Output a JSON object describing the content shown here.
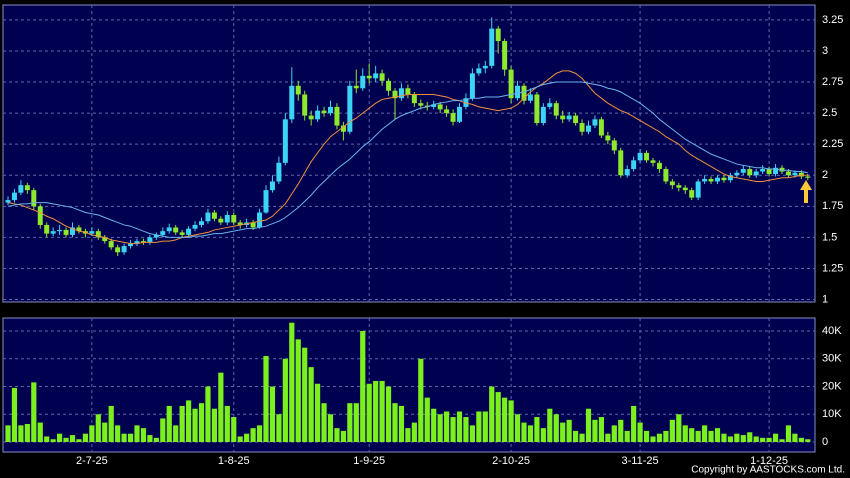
{
  "chart_data": {
    "type": "candlestick",
    "categories": [
      null,
      null,
      null,
      null,
      null,
      null,
      null,
      null,
      null,
      null,
      null,
      null,
      null,
      "2-7-25",
      null,
      null,
      null,
      null,
      null,
      null,
      null,
      null,
      null,
      null,
      null,
      null,
      null,
      null,
      null,
      null,
      null,
      null,
      null,
      null,
      null,
      "1-8-25",
      null,
      null,
      null,
      null,
      null,
      null,
      null,
      null,
      null,
      null,
      null,
      null,
      null,
      null,
      null,
      null,
      null,
      null,
      null,
      null,
      "1-9-25",
      null,
      null,
      null,
      null,
      null,
      null,
      null,
      null,
      null,
      null,
      null,
      null,
      null,
      null,
      null,
      null,
      null,
      null,
      null,
      null,
      null,
      "2-10-25",
      null,
      null,
      null,
      null,
      null,
      null,
      null,
      null,
      null,
      null,
      null,
      null,
      null,
      null,
      null,
      null,
      null,
      null,
      null,
      "3-11-25",
      null,
      null,
      null,
      null,
      null,
      null,
      null,
      null,
      null,
      null,
      null,
      null,
      null,
      null,
      null,
      null,
      null,
      null,
      null,
      "1-12-25",
      null,
      null,
      null,
      null,
      null,
      null
    ],
    "open": [
      1.78,
      1.8,
      1.86,
      1.92,
      1.88,
      1.75,
      1.6,
      1.53,
      1.55,
      1.56,
      1.52,
      1.58,
      1.55,
      1.53,
      1.55,
      1.5,
      1.47,
      1.42,
      1.38,
      1.43,
      1.45,
      1.47,
      1.46,
      1.5,
      1.52,
      1.55,
      1.58,
      1.54,
      1.52,
      1.57,
      1.6,
      1.63,
      1.7,
      1.65,
      1.62,
      1.68,
      1.62,
      1.6,
      1.62,
      1.58,
      1.7,
      1.88,
      1.95,
      2.1,
      2.45,
      2.72,
      2.65,
      2.48,
      2.45,
      2.52,
      2.5,
      2.55,
      2.4,
      2.35,
      2.72,
      2.7,
      2.8,
      2.78,
      2.82,
      2.76,
      2.68,
      2.62,
      2.7,
      2.65,
      2.58,
      2.56,
      2.55,
      2.57,
      2.53,
      2.5,
      2.43,
      2.55,
      2.62,
      2.82,
      2.86,
      2.88,
      3.18,
      3.08,
      2.85,
      2.62,
      2.72,
      2.6,
      2.65,
      2.42,
      2.55,
      2.58,
      2.48,
      2.45,
      2.48,
      2.42,
      2.35,
      2.4,
      2.45,
      2.32,
      2.28,
      2.2,
      2.0,
      2.05,
      2.12,
      2.18,
      2.12,
      2.1,
      2.05,
      1.95,
      1.92,
      1.9,
      1.88,
      1.82,
      1.95,
      1.97,
      1.95,
      1.98,
      1.96,
      2.0,
      2.02,
      2.05,
      2.0,
      2.03,
      2.05,
      2.01,
      2.06,
      2.03,
      2.0,
      2.02,
      1.99
    ],
    "high": [
      1.83,
      1.89,
      1.96,
      1.94,
      1.9,
      1.77,
      1.62,
      1.58,
      1.6,
      1.58,
      1.62,
      1.6,
      1.57,
      1.58,
      1.57,
      1.52,
      1.49,
      1.44,
      1.45,
      1.48,
      1.49,
      1.49,
      1.52,
      1.54,
      1.58,
      1.61,
      1.6,
      1.56,
      1.59,
      1.63,
      1.66,
      1.73,
      1.72,
      1.67,
      1.71,
      1.7,
      1.64,
      1.65,
      1.64,
      1.73,
      1.92,
      2.0,
      2.15,
      2.5,
      2.87,
      2.76,
      2.68,
      2.52,
      2.56,
      2.55,
      2.6,
      2.58,
      2.43,
      2.76,
      2.85,
      2.86,
      2.9,
      2.88,
      2.85,
      2.78,
      2.7,
      2.74,
      2.73,
      2.67,
      2.61,
      2.59,
      2.6,
      2.59,
      2.56,
      2.53,
      2.58,
      2.66,
      2.86,
      2.9,
      2.92,
      3.27,
      3.2,
      3.1,
      2.88,
      2.76,
      2.74,
      2.7,
      2.67,
      2.58,
      2.62,
      2.6,
      2.52,
      2.51,
      2.5,
      2.45,
      2.44,
      2.48,
      2.47,
      2.35,
      2.3,
      2.22,
      2.08,
      2.15,
      2.21,
      2.2,
      2.14,
      2.12,
      2.07,
      1.97,
      1.94,
      1.92,
      1.9,
      1.97,
      2.0,
      1.99,
      2.0,
      2.0,
      2.02,
      2.04,
      2.08,
      2.07,
      2.05,
      2.08,
      2.07,
      2.09,
      2.08,
      2.05,
      2.04,
      2.04,
      2.01
    ],
    "low": [
      1.76,
      1.78,
      1.84,
      1.85,
      1.72,
      1.57,
      1.5,
      1.51,
      1.52,
      1.5,
      1.5,
      1.53,
      1.5,
      1.51,
      1.48,
      1.45,
      1.4,
      1.35,
      1.36,
      1.41,
      1.43,
      1.44,
      1.44,
      1.48,
      1.5,
      1.53,
      1.52,
      1.5,
      1.5,
      1.55,
      1.58,
      1.61,
      1.63,
      1.6,
      1.6,
      1.6,
      1.57,
      1.58,
      1.56,
      1.57,
      1.69,
      1.86,
      1.93,
      2.08,
      2.42,
      2.6,
      2.44,
      2.4,
      2.43,
      2.47,
      2.48,
      2.37,
      2.28,
      2.33,
      2.66,
      2.68,
      2.74,
      2.75,
      2.72,
      2.64,
      2.45,
      2.6,
      2.62,
      2.55,
      2.53,
      2.52,
      2.53,
      2.5,
      2.47,
      2.4,
      2.42,
      2.53,
      2.6,
      2.8,
      2.82,
      2.86,
      2.98,
      2.8,
      2.58,
      2.6,
      2.57,
      2.58,
      2.4,
      2.4,
      2.53,
      2.45,
      2.42,
      2.43,
      2.4,
      2.32,
      2.33,
      2.38,
      2.3,
      2.25,
      2.17,
      1.98,
      1.98,
      2.03,
      2.1,
      2.1,
      2.07,
      2.02,
      1.93,
      1.89,
      1.87,
      1.85,
      1.8,
      1.8,
      1.93,
      1.93,
      1.93,
      1.94,
      1.94,
      1.98,
      2.0,
      1.98,
      1.98,
      2.01,
      1.99,
      1.99,
      2.01,
      1.98,
      1.98,
      1.97,
      1.96
    ],
    "close": [
      1.8,
      1.86,
      1.92,
      1.88,
      1.75,
      1.6,
      1.53,
      1.55,
      1.56,
      1.52,
      1.58,
      1.55,
      1.53,
      1.55,
      1.5,
      1.47,
      1.42,
      1.38,
      1.43,
      1.45,
      1.47,
      1.46,
      1.5,
      1.52,
      1.55,
      1.58,
      1.54,
      1.52,
      1.57,
      1.6,
      1.63,
      1.7,
      1.65,
      1.62,
      1.68,
      1.62,
      1.6,
      1.62,
      1.58,
      1.7,
      1.88,
      1.95,
      2.1,
      2.45,
      2.72,
      2.65,
      2.48,
      2.45,
      2.52,
      2.5,
      2.55,
      2.4,
      2.35,
      2.72,
      2.7,
      2.8,
      2.78,
      2.82,
      2.76,
      2.68,
      2.62,
      2.7,
      2.65,
      2.58,
      2.56,
      2.55,
      2.57,
      2.53,
      2.5,
      2.43,
      2.55,
      2.62,
      2.82,
      2.86,
      2.88,
      3.18,
      3.08,
      2.85,
      2.62,
      2.72,
      2.6,
      2.65,
      2.42,
      2.55,
      2.58,
      2.48,
      2.45,
      2.48,
      2.42,
      2.35,
      2.4,
      2.45,
      2.32,
      2.28,
      2.2,
      2.0,
      2.05,
      2.12,
      2.18,
      2.12,
      2.1,
      2.05,
      1.95,
      1.92,
      1.9,
      1.88,
      1.82,
      1.95,
      1.97,
      1.95,
      1.98,
      1.96,
      2.0,
      2.02,
      2.05,
      2.0,
      2.03,
      2.05,
      2.01,
      2.06,
      2.03,
      2.0,
      2.02,
      1.99,
      1.98
    ],
    "up_color": "#3cd4f4",
    "down_color": "#8ee82c",
    "ylim": [
      0.98,
      3.37
    ],
    "yticks": [
      1,
      1.25,
      1.5,
      1.75,
      2,
      2.25,
      2.5,
      2.75,
      3,
      3.25
    ],
    "grid": true,
    "ma_lines": [
      {
        "color": "#f0903c",
        "values": [
          1.78,
          1.77,
          1.76,
          1.74,
          1.72,
          1.7,
          1.67,
          1.65,
          1.62,
          1.59,
          1.57,
          1.55,
          1.54,
          1.52,
          1.51,
          1.5,
          1.48,
          1.47,
          1.46,
          1.45,
          1.45,
          1.46,
          1.46,
          1.46,
          1.47,
          1.47,
          1.48,
          1.5,
          1.51,
          1.52,
          1.53,
          1.54,
          1.56,
          1.57,
          1.58,
          1.59,
          1.6,
          1.61,
          1.62,
          1.63,
          1.64,
          1.67,
          1.72,
          1.77,
          1.85,
          1.93,
          2.02,
          2.11,
          2.18,
          2.25,
          2.31,
          2.35,
          2.39,
          2.43,
          2.46,
          2.5,
          2.54,
          2.58,
          2.61,
          2.62,
          2.63,
          2.64,
          2.65,
          2.65,
          2.65,
          2.65,
          2.65,
          2.64,
          2.63,
          2.61,
          2.6,
          2.58,
          2.57,
          2.55,
          2.54,
          2.53,
          2.52,
          2.53,
          2.54,
          2.57,
          2.62,
          2.67,
          2.71,
          2.74,
          2.78,
          2.82,
          2.84,
          2.84,
          2.82,
          2.78,
          2.72,
          2.66,
          2.62,
          2.58,
          2.55,
          2.52,
          2.5,
          2.47,
          2.44,
          2.41,
          2.38,
          2.35,
          2.31,
          2.28,
          2.25,
          2.2,
          2.16,
          2.13,
          2.1,
          2.07,
          2.04,
          2.01,
          1.99,
          1.98,
          1.97,
          1.96,
          1.95,
          1.95,
          1.96,
          1.97,
          1.98,
          1.98,
          1.99,
          2.0,
          2.0
        ]
      },
      {
        "color": "#6ab4f0",
        "values": [
          1.75,
          1.76,
          1.77,
          1.77,
          1.78,
          1.78,
          1.78,
          1.77,
          1.76,
          1.75,
          1.74,
          1.72,
          1.7,
          1.69,
          1.68,
          1.66,
          1.64,
          1.62,
          1.6,
          1.59,
          1.57,
          1.55,
          1.53,
          1.52,
          1.51,
          1.5,
          1.5,
          1.5,
          1.5,
          1.51,
          1.51,
          1.52,
          1.53,
          1.53,
          1.54,
          1.55,
          1.56,
          1.57,
          1.57,
          1.58,
          1.59,
          1.61,
          1.63,
          1.66,
          1.7,
          1.74,
          1.79,
          1.84,
          1.9,
          1.95,
          2.0,
          2.05,
          2.09,
          2.13,
          2.18,
          2.23,
          2.27,
          2.32,
          2.37,
          2.41,
          2.45,
          2.48,
          2.5,
          2.52,
          2.54,
          2.55,
          2.57,
          2.58,
          2.59,
          2.6,
          2.6,
          2.61,
          2.62,
          2.62,
          2.63,
          2.63,
          2.63,
          2.64,
          2.65,
          2.66,
          2.67,
          2.69,
          2.71,
          2.73,
          2.74,
          2.75,
          2.75,
          2.75,
          2.75,
          2.75,
          2.74,
          2.73,
          2.72,
          2.7,
          2.69,
          2.67,
          2.64,
          2.61,
          2.58,
          2.54,
          2.5,
          2.45,
          2.41,
          2.37,
          2.33,
          2.29,
          2.26,
          2.23,
          2.2,
          2.17,
          2.15,
          2.13,
          2.11,
          2.09,
          2.08,
          2.07,
          2.06,
          2.06,
          2.05,
          2.05,
          2.04,
          2.04,
          2.03,
          2.03,
          2.02
        ]
      }
    ],
    "volume": {
      "color": "#7cf01c",
      "ylim": [
        -3600,
        44700
      ],
      "yticks": [
        0,
        {
          "value": 10000,
          "label": "10K"
        },
        {
          "value": 20000,
          "label": "20K"
        },
        {
          "value": 30000,
          "label": "30K"
        },
        {
          "value": 40000,
          "label": "40K"
        }
      ],
      "values": [
        6000,
        19500,
        6000,
        6500,
        21500,
        7000,
        2000,
        1000,
        3000,
        1500,
        2500,
        1000,
        3000,
        6000,
        10000,
        7000,
        13000,
        6000,
        3000,
        3000,
        6000,
        5000,
        2500,
        1500,
        8500,
        13000,
        6000,
        13000,
        15000,
        12000,
        14000,
        20000,
        12000,
        25000,
        13000,
        9000,
        2000,
        3000,
        5000,
        6000,
        31000,
        20000,
        10000,
        30000,
        43000,
        37000,
        34000,
        27000,
        21000,
        14000,
        10000,
        5000,
        4000,
        14000,
        14000,
        40000,
        21000,
        22000,
        22000,
        20000,
        14000,
        13000,
        5000,
        7000,
        30000,
        16000,
        12000,
        10000,
        11000,
        9000,
        11000,
        9000,
        6000,
        11000,
        11000,
        20000,
        18000,
        16000,
        15000,
        10000,
        7000,
        6000,
        9000,
        5000,
        12000,
        10000,
        7000,
        8000,
        4000,
        3000,
        12000,
        8000,
        9000,
        3000,
        6000,
        8000,
        4000,
        13000,
        7000,
        4000,
        2000,
        3000,
        4000,
        8000,
        10000,
        6000,
        5000,
        4000,
        6000,
        4000,
        5000,
        3000,
        2000,
        3000,
        2500,
        3500,
        2000,
        1500,
        1500,
        3000,
        1000,
        6000,
        3000,
        1500,
        1000
      ]
    },
    "note": "Copyright by AASTOCKS.com Ltd."
  }
}
